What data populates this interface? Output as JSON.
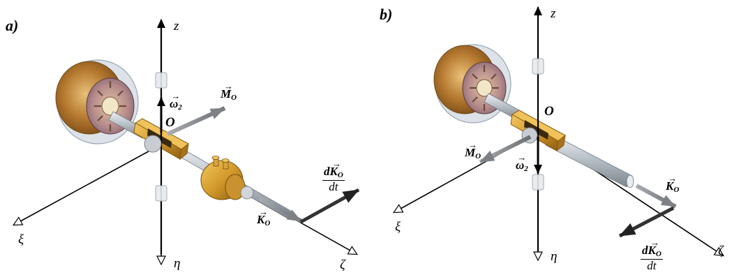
{
  "panels": [
    {
      "label": "a)",
      "axes": {
        "z": "z",
        "xi": "ξ",
        "eta": "η",
        "zeta": "ζ"
      },
      "origin": "O",
      "vectors": {
        "M": {
          "symbol": "M",
          "sub": "O"
        },
        "omega": {
          "symbol": "ω",
          "sub": "2"
        },
        "K": {
          "symbol": "K",
          "sub": "O"
        },
        "dK": {
          "num": "dK",
          "sub": "O",
          "den": "dt"
        }
      }
    },
    {
      "label": "b)",
      "axes": {
        "z": "z",
        "xi": "ξ",
        "eta": "η",
        "zeta": "ζ"
      },
      "origin": "O",
      "vectors": {
        "M": {
          "symbol": "M",
          "sub": "O"
        },
        "omega": {
          "symbol": "ω",
          "sub": "2"
        },
        "K": {
          "symbol": "K",
          "sub": "O"
        },
        "dK": {
          "num": "dK",
          "sub": "O",
          "den": "dt"
        }
      }
    }
  ],
  "arrow_glyph": "→",
  "colors": {
    "brass": "#d6a23a",
    "brass_dark": "#9a6a12",
    "rotor_glass": "#c8d3dc",
    "rotor_copper": "#b57a2c",
    "shaft": "#b9c0c8",
    "vector_gray": "#808488",
    "axis": "#000000"
  }
}
